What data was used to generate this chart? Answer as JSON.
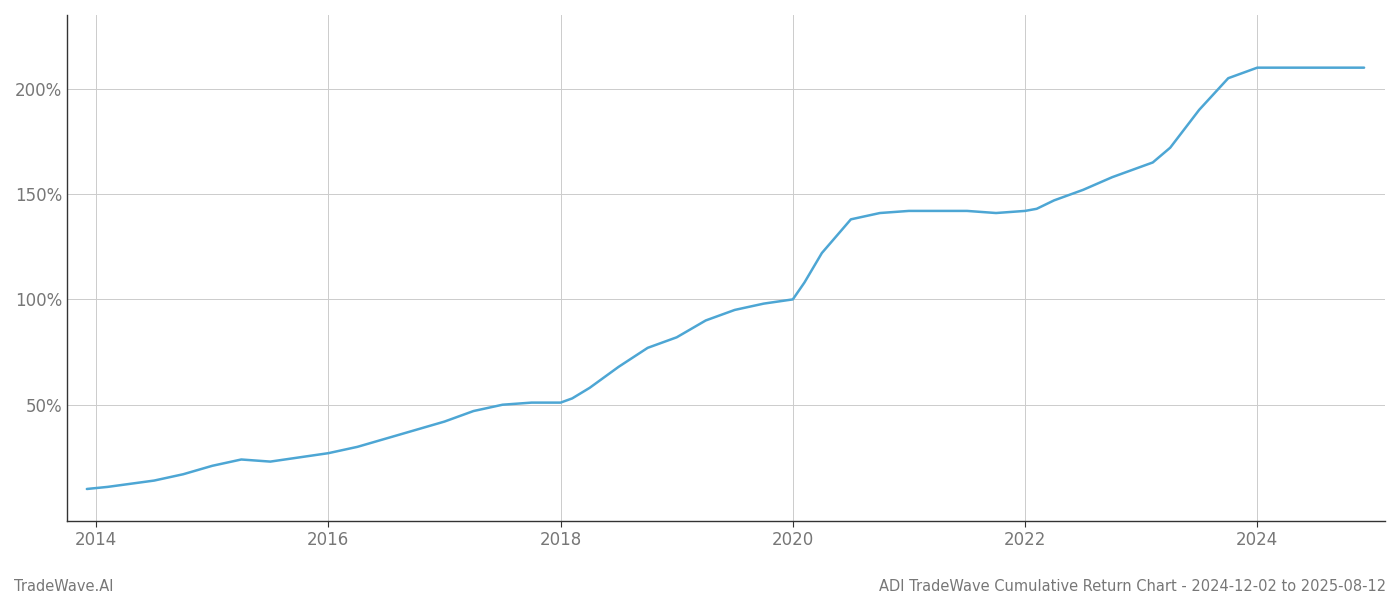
{
  "title": "ADI TradeWave Cumulative Return Chart - 2024-12-02 to 2025-08-12",
  "watermark": "TradeWave.AI",
  "line_color": "#4da6d4",
  "background_color": "#ffffff",
  "grid_color": "#cccccc",
  "x_years": [
    2013.92,
    2014.1,
    2014.5,
    2014.75,
    2015.0,
    2015.25,
    2015.5,
    2015.75,
    2016.0,
    2016.25,
    2016.5,
    2016.75,
    2017.0,
    2017.25,
    2017.5,
    2017.75,
    2018.0,
    2018.1,
    2018.25,
    2018.5,
    2018.75,
    2019.0,
    2019.25,
    2019.5,
    2019.75,
    2020.0,
    2020.1,
    2020.25,
    2020.5,
    2020.75,
    2021.0,
    2021.25,
    2021.5,
    2021.75,
    2022.0,
    2022.1,
    2022.25,
    2022.5,
    2022.75,
    2023.0,
    2023.1,
    2023.25,
    2023.5,
    2023.75,
    2024.0,
    2024.25,
    2024.5,
    2024.75,
    2024.92
  ],
  "y_values": [
    10,
    11,
    14,
    17,
    21,
    24,
    23,
    25,
    27,
    30,
    34,
    38,
    42,
    47,
    50,
    51,
    51,
    53,
    58,
    68,
    77,
    82,
    90,
    95,
    98,
    100,
    108,
    122,
    138,
    141,
    142,
    142,
    142,
    141,
    142,
    143,
    147,
    152,
    158,
    163,
    165,
    172,
    190,
    205,
    210,
    210,
    210,
    210,
    210
  ],
  "xticks": [
    2014,
    2016,
    2018,
    2020,
    2022,
    2024
  ],
  "yticks": [
    50,
    100,
    150,
    200
  ],
  "ytick_labels": [
    "50%",
    "100%",
    "150%",
    "200%"
  ],
  "xlim": [
    2013.75,
    2025.1
  ],
  "ylim": [
    -5,
    235
  ],
  "axis_color": "#333333",
  "tick_color": "#777777",
  "spine_color": "#333333",
  "title_fontsize": 10.5,
  "watermark_fontsize": 10.5,
  "tick_fontsize": 12,
  "line_width": 1.8
}
